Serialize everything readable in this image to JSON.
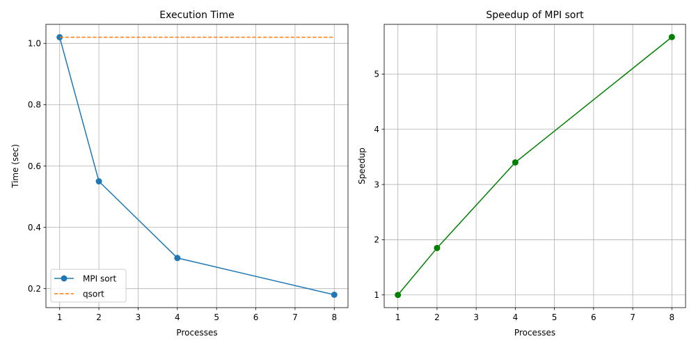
{
  "chart_data": [
    {
      "type": "line",
      "title": "Execution Time",
      "xlabel": "Processes",
      "ylabel": "Time (sec)",
      "xlim": [
        0.65,
        8.35
      ],
      "ylim": [
        0.138,
        1.062
      ],
      "xticks": [
        1,
        2,
        3,
        4,
        5,
        6,
        7,
        8
      ],
      "yticks": [
        0.2,
        0.4,
        0.6,
        0.8,
        1.0
      ],
      "ytick_labels": [
        "0.2",
        "0.4",
        "0.6",
        "0.8",
        "1.0"
      ],
      "grid": true,
      "legend": "lower-left",
      "series": [
        {
          "name": "MPI sort",
          "x": [
            1,
            2,
            4,
            8
          ],
          "y": [
            1.02,
            0.55,
            0.3,
            0.18
          ],
          "color": "#1f77b4",
          "style": "solid",
          "marker": true
        },
        {
          "name": "qsort",
          "x": [
            1,
            8
          ],
          "y": [
            1.02,
            1.02
          ],
          "color": "#ff7f0e",
          "style": "dashed",
          "marker": false
        }
      ]
    },
    {
      "type": "line",
      "title": "Speedup of MPI sort",
      "xlabel": "Processes",
      "ylabel": "Speedup",
      "xlim": [
        0.65,
        8.35
      ],
      "ylim": [
        0.77,
        5.9
      ],
      "xticks": [
        1,
        2,
        3,
        4,
        5,
        6,
        7,
        8
      ],
      "yticks": [
        1,
        2,
        3,
        4,
        5
      ],
      "ytick_labels": [
        "1",
        "2",
        "3",
        "4",
        "5"
      ],
      "grid": true,
      "legend": "none",
      "series": [
        {
          "x": [
            1,
            2,
            4,
            8
          ],
          "y": [
            1.0,
            1.85,
            3.4,
            5.67
          ],
          "color": "#008000",
          "style": "solid",
          "marker": true
        }
      ]
    }
  ]
}
